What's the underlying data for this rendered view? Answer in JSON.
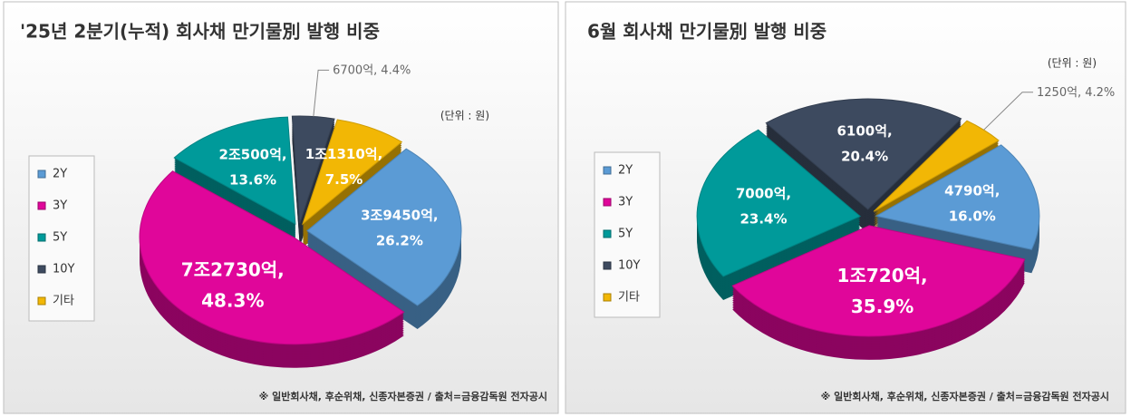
{
  "chart_data": [
    {
      "type": "pie",
      "title": "'25년 2분기(누적) 회사채 만기물別 발행 비중",
      "unit_note": "(단위 : 원)",
      "footnote": "※ 일반회사채, 후순위채, 신종자본증권 / 출처=금융감독원 전자공시",
      "categories": [
        "2Y",
        "3Y",
        "5Y",
        "10Y",
        "기타"
      ],
      "values": [
        26.2,
        48.3,
        13.6,
        4.4,
        7.5
      ],
      "value_labels": [
        "26.2%",
        "48.3%",
        "13.6%",
        "4.4%",
        "7.5%"
      ],
      "amount_labels": [
        "3조9450억,",
        "7조2730억,",
        "2조500억,",
        "6700억,",
        "1조1310억,"
      ],
      "colors": [
        "#5b9bd5",
        "#e0069a",
        "#009a9a",
        "#3d4a5f",
        "#f2b705"
      ]
    },
    {
      "type": "pie",
      "title": "6월 회사채 만기물別 발행 비중",
      "unit_note": "(단위 : 원)",
      "footnote": "※ 일반회사채, 후순위채, 신종자본증권 / 출처=금융감독원 전자공시",
      "categories": [
        "2Y",
        "3Y",
        "5Y",
        "10Y",
        "기타"
      ],
      "values": [
        16.0,
        35.9,
        23.4,
        20.4,
        4.2
      ],
      "value_labels": [
        "16.0%",
        "35.9%",
        "23.4%",
        "20.4%",
        "4.2%"
      ],
      "amount_labels": [
        "4790억,",
        "1조720억,",
        "7000억,",
        "6100억,",
        "1250억,"
      ],
      "colors": [
        "#5b9bd5",
        "#e0069a",
        "#009a9a",
        "#3d4a5f",
        "#f2b705"
      ]
    }
  ]
}
